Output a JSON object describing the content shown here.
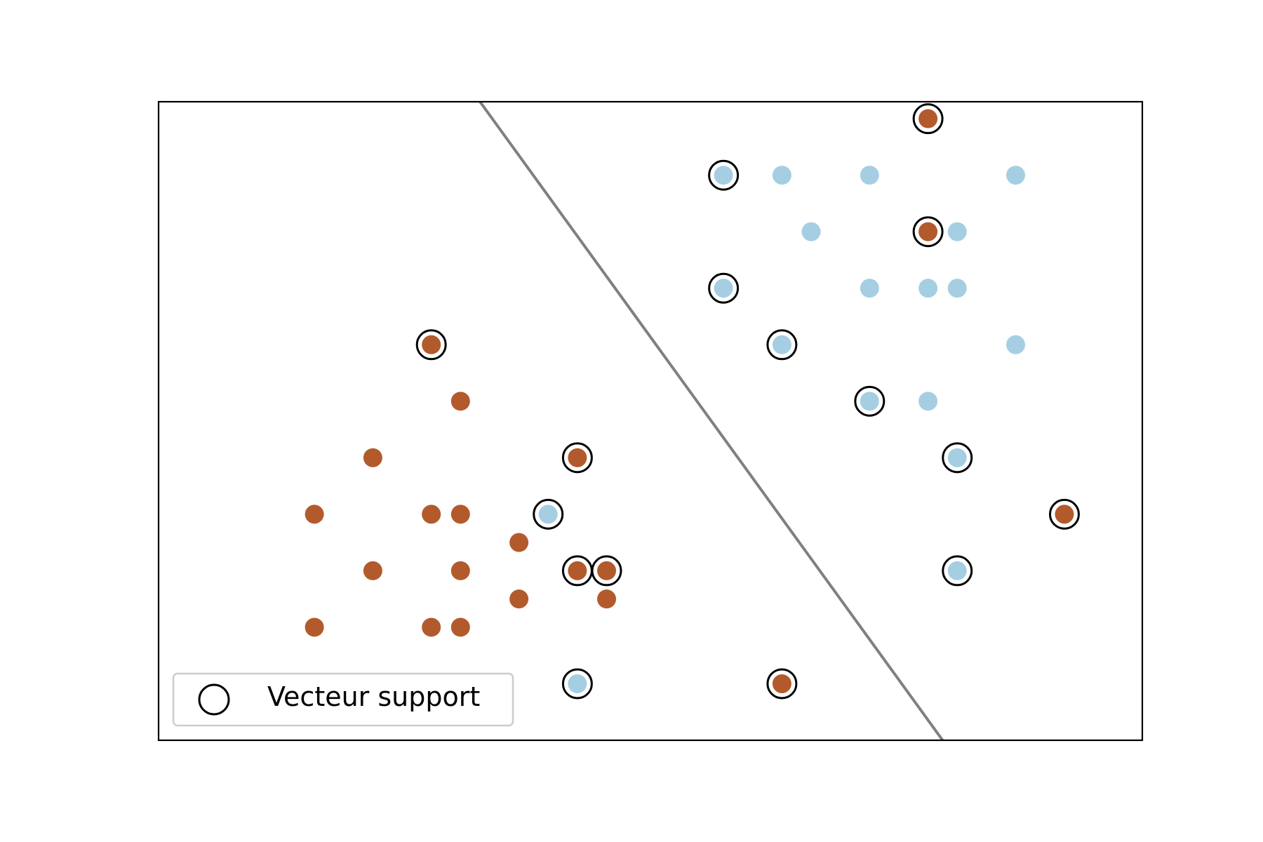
{
  "chart_data": {
    "type": "scatter",
    "title": "",
    "xlabel": "",
    "ylabel": "",
    "xlim": [
      -0.8,
      9.3
    ],
    "ylim": [
      -3.0,
      8.3
    ],
    "axis_ticks_shown": false,
    "grid": false,
    "legend": {
      "position": "lower-left",
      "entries": [
        {
          "label": "Vecteur support",
          "marker": "open-circle"
        }
      ]
    },
    "colors": {
      "class_a": "#b35a2c",
      "class_b": "#a6cee3",
      "decision_boundary": "#808080",
      "support_vector_ring": "#000000",
      "frame": "#000000",
      "legend_border": "#cccccc"
    },
    "decision_boundary": {
      "type": "line",
      "points": [
        [
          2.5,
          8.3
        ],
        [
          7.25,
          -3.0
        ]
      ]
    },
    "series": [
      {
        "class": "class_a",
        "points": [
          [
            0.8,
            -1
          ],
          [
            2.0,
            -1
          ],
          [
            1.4,
            0
          ],
          [
            2.3,
            0
          ],
          [
            2.3,
            -1.0
          ],
          [
            2.9,
            -0.5
          ],
          [
            3.8,
            -0.5
          ],
          [
            2.9,
            0.5
          ],
          [
            0.8,
            1
          ],
          [
            2.0,
            1
          ],
          [
            2.3,
            1
          ],
          [
            1.4,
            2
          ],
          [
            2.3,
            3
          ],
          [
            2.0,
            4
          ],
          [
            3.5,
            2
          ],
          [
            3.5,
            0
          ],
          [
            3.8,
            0
          ],
          [
            7.1,
            8
          ],
          [
            7.1,
            6
          ],
          [
            8.5,
            1
          ],
          [
            5.6,
            -2
          ]
        ]
      },
      {
        "class": "class_b",
        "points": [
          [
            5,
            7
          ],
          [
            5.6,
            7
          ],
          [
            6.5,
            7
          ],
          [
            8.0,
            7
          ],
          [
            5.9,
            6
          ],
          [
            7.4,
            6
          ],
          [
            5,
            5
          ],
          [
            6.5,
            5
          ],
          [
            7.1,
            5
          ],
          [
            7.4,
            5
          ],
          [
            5.6,
            4
          ],
          [
            8.0,
            4
          ],
          [
            6.5,
            3
          ],
          [
            7.1,
            3
          ],
          [
            7.4,
            2
          ],
          [
            7.4,
            0
          ],
          [
            3.2,
            1
          ],
          [
            3.5,
            -2
          ]
        ]
      }
    ],
    "support_vectors": [
      [
        7.1,
        8
      ],
      [
        5,
        7
      ],
      [
        7.1,
        6
      ],
      [
        5,
        5
      ],
      [
        2.0,
        4
      ],
      [
        5.6,
        4
      ],
      [
        6.5,
        3
      ],
      [
        3.5,
        2
      ],
      [
        7.4,
        2
      ],
      [
        3.2,
        1
      ],
      [
        8.5,
        1
      ],
      [
        3.5,
        0
      ],
      [
        3.8,
        0
      ],
      [
        7.4,
        0
      ],
      [
        3.5,
        -2
      ],
      [
        5.6,
        -2
      ]
    ]
  }
}
